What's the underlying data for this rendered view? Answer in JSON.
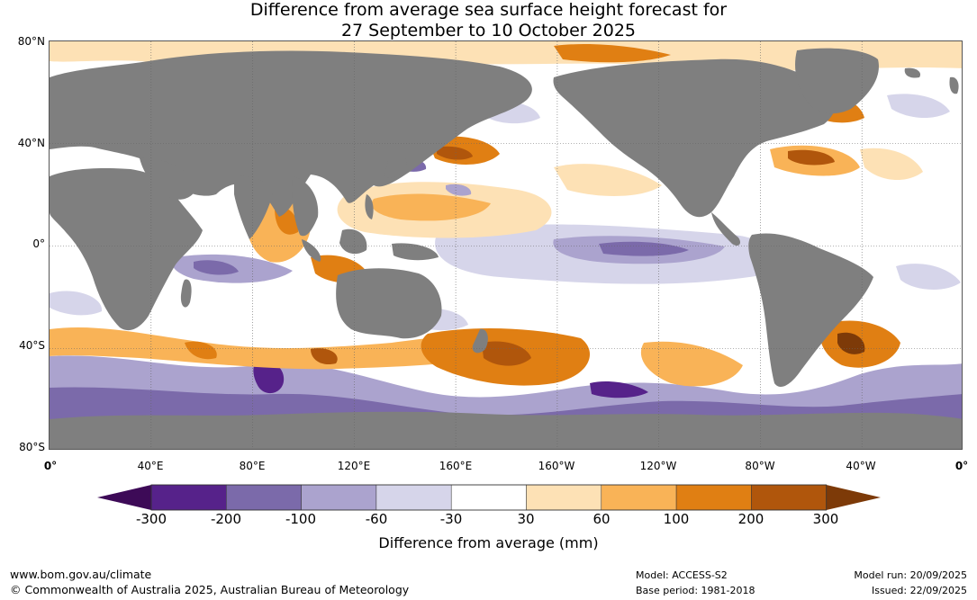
{
  "title": {
    "line1": "Difference from average sea surface height forecast for",
    "line2": "27 September to 10 October 2025"
  },
  "lat_labels": [
    "80°N",
    "40°N",
    "0°",
    "40°S",
    "80°S"
  ],
  "lon_labels": [
    "0°",
    "40°E",
    "80°E",
    "120°E",
    "160°E",
    "160°W",
    "120°W",
    "80°W",
    "40°W",
    "0°"
  ],
  "colorbar": {
    "title": "Difference from average (mm)",
    "tick_labels": [
      "-300",
      "-200",
      "-100",
      "-60",
      "-30",
      "30",
      "60",
      "100",
      "200",
      "300"
    ],
    "colors": [
      "#3d0a57",
      "#56228a",
      "#7b6aaa",
      "#aba3ce",
      "#d6d5ea",
      "#ffffff",
      "#fde1b5",
      "#f9b357",
      "#e07f13",
      "#b0560c",
      "#7d3a08"
    ]
  },
  "map_colors": {
    "land": "#7f7f7f",
    "ocean_neutral": "#ffffff"
  },
  "footer": {
    "url": "www.bom.gov.au/climate",
    "copyright": "© Commonwealth of Australia 2025, Australian Bureau of Meteorology",
    "model": "Model: ACCESS-S2",
    "base_period": "Base period: 1981-2018",
    "model_run": "Model run: 20/09/2025",
    "issued": "Issued: 22/09/2025"
  }
}
